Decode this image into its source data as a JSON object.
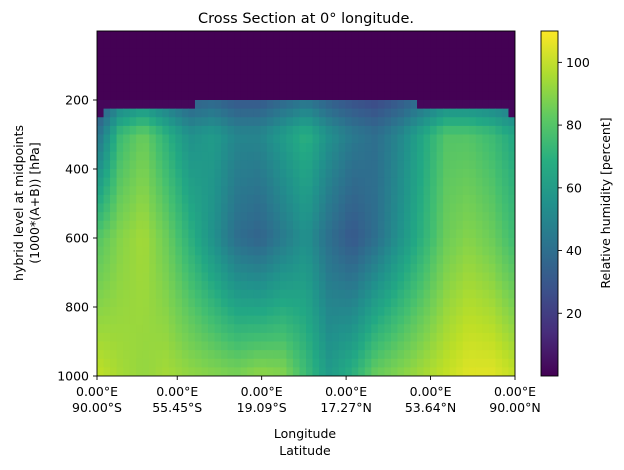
{
  "chart_data": {
    "type": "heatmap",
    "title": "Cross Section at 0° longitude.",
    "xlabel": [
      "Longitude",
      "Latitude"
    ],
    "ylabel": [
      "hybrid level at midpoints",
      "(1000*(A+B)) [hPa]"
    ],
    "x_tick_labels": [
      [
        "0.00°E",
        "90.00°S"
      ],
      [
        "0.00°E",
        "55.45°S"
      ],
      [
        "0.00°E",
        "19.09°S"
      ],
      [
        "0.00°E",
        "17.27°N"
      ],
      [
        "0.00°E",
        "53.64°N"
      ],
      [
        "0.00°E",
        "90.00°N"
      ]
    ],
    "x_tick_latitudes": [
      -90.0,
      -55.45,
      -19.09,
      17.27,
      53.64,
      90.0
    ],
    "x_range_latitude": [
      -90,
      90
    ],
    "y_ticks": [
      200,
      400,
      600,
      800,
      1000
    ],
    "y_range_hpa": [
      1000,
      0
    ],
    "y_axis_inverted": true,
    "colorbar": {
      "label": "Relative humidity [percent]",
      "ticks": [
        20,
        40,
        60,
        80,
        100
      ],
      "range": [
        0,
        110
      ],
      "colormap": "viridis"
    },
    "grid": false,
    "approx_rh_percent_by_lat_band": {
      "lats": [
        -90,
        -80,
        -70,
        -60,
        -50,
        -40,
        -30,
        -20,
        -10,
        0,
        10,
        20,
        30,
        40,
        50,
        60,
        70,
        80,
        90
      ],
      "surface_1000_hpa": [
        100,
        95,
        92,
        95,
        92,
        90,
        88,
        92,
        90,
        75,
        60,
        70,
        85,
        90,
        95,
        100,
        105,
        105,
        100
      ],
      "mid_600_hpa": [
        80,
        90,
        95,
        85,
        70,
        55,
        40,
        35,
        45,
        55,
        40,
        30,
        40,
        55,
        70,
        85,
        90,
        85,
        75
      ],
      "upper_300_hpa": [
        40,
        75,
        85,
        70,
        55,
        60,
        50,
        50,
        60,
        70,
        55,
        45,
        40,
        50,
        65,
        80,
        80,
        75,
        65
      ],
      "above_200_hpa": [
        0,
        0,
        0,
        0,
        0,
        0,
        0,
        0,
        0,
        0,
        0,
        0,
        0,
        0,
        0,
        0,
        0,
        0,
        0
      ]
    }
  }
}
